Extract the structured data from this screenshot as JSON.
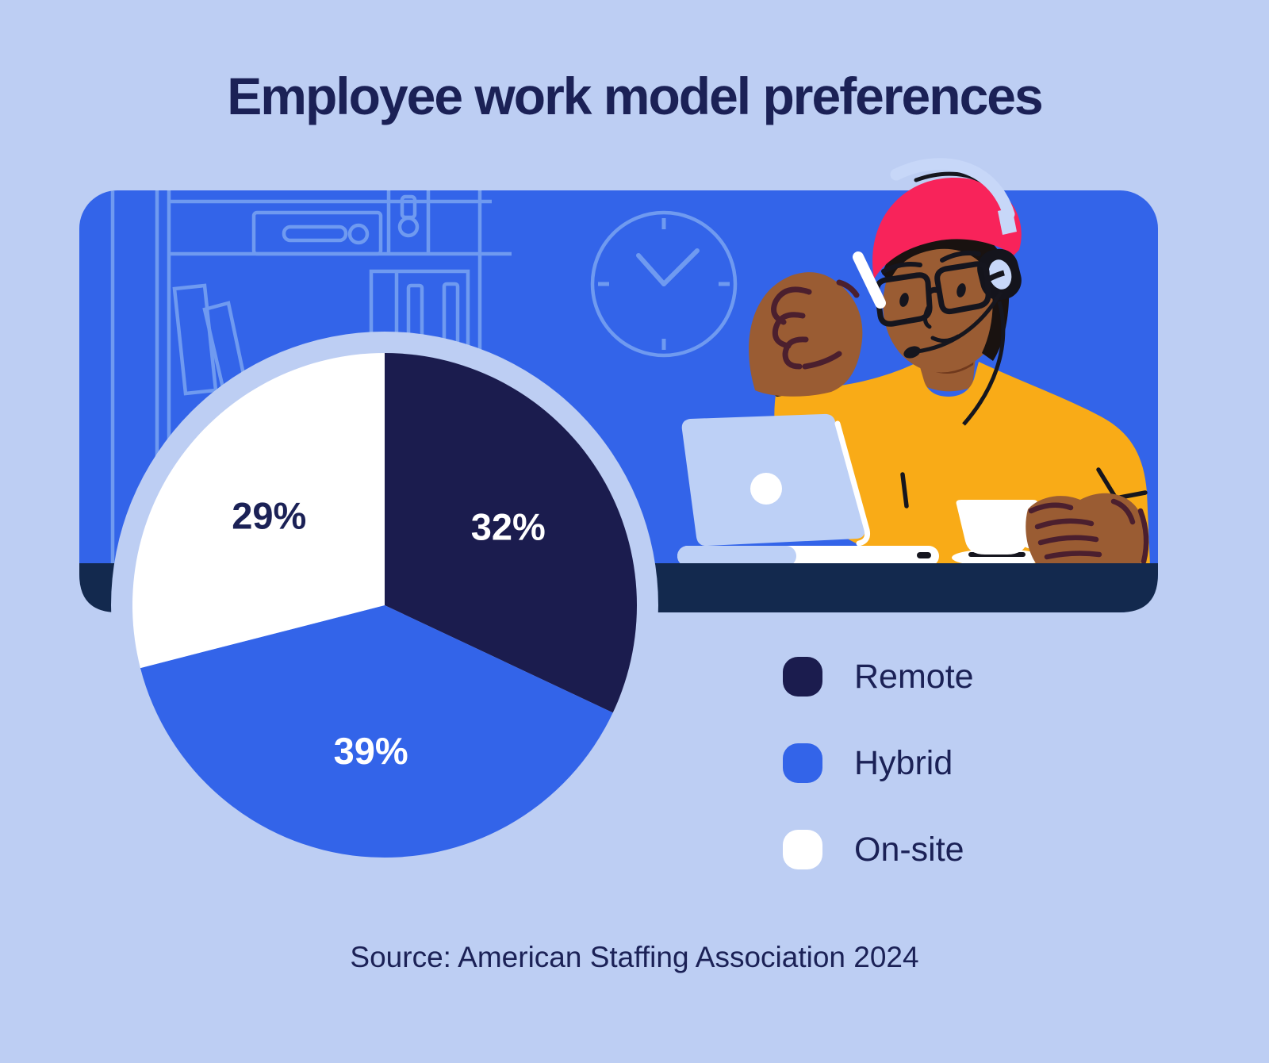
{
  "header": {
    "title": "Employee work model preferences"
  },
  "footer": {
    "source": "Source: American Staffing Association 2024"
  },
  "colors": {
    "background": "#BDCEF3",
    "text_navy": "#1B2156",
    "panel_blue": "#3364E9",
    "panel_line_art": "#6F9AF0",
    "desk_navy": "#13294E",
    "ring": "#BDCEF3",
    "remote_navy": "#1B1C4E",
    "hybrid_blue": "#3364E9",
    "onsite_white": "#FFFFFF",
    "sweater_yellow": "#F9AB17",
    "beanie_red": "#F8235A",
    "skin_brown": "#9A5C33",
    "laptop_blue": "#BDD0F6",
    "headset_blue": "#C7D7F8"
  },
  "chart_data": {
    "type": "pie",
    "title": "Employee work model preferences",
    "slices": [
      {
        "label": "Remote",
        "value": 32,
        "value_label": "32%",
        "color": "#1B1C4E",
        "value_label_color": "#FFFFFF"
      },
      {
        "label": "Hybrid",
        "value": 39,
        "value_label": "39%",
        "color": "#3364E9",
        "value_label_color": "#FFFFFF"
      },
      {
        "label": "On-site",
        "value": 29,
        "value_label": "29%",
        "color": "#FFFFFF",
        "value_label_color": "#1B2156"
      }
    ],
    "start_angle_deg": 0,
    "direction": "clockwise",
    "labels_inside": true,
    "legend_position": "right",
    "source": "Source: American Staffing Association 2024"
  },
  "illustration": {
    "elements": [
      "wall-clock",
      "bookshelf",
      "person-with-headset",
      "beanie-hat",
      "glasses",
      "pen",
      "laptop",
      "coffee-cup",
      "desk"
    ]
  }
}
